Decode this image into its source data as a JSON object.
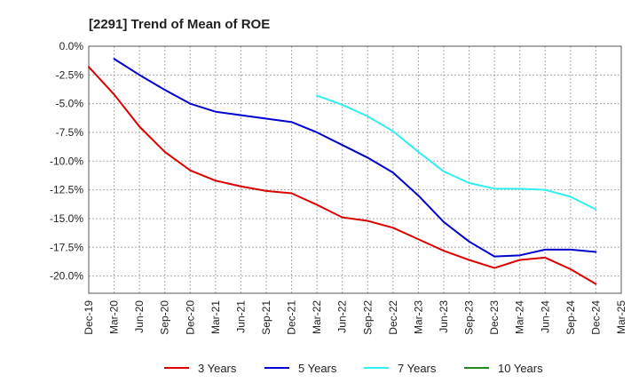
{
  "chart_data": {
    "type": "line",
    "title": "[2291]  Trend of Mean of ROE",
    "xlabel": "",
    "ylabel": "",
    "x": [
      "Dec-19",
      "Mar-20",
      "Jun-20",
      "Sep-20",
      "Dec-20",
      "Mar-21",
      "Jun-21",
      "Sep-21",
      "Dec-21",
      "Mar-22",
      "Jun-22",
      "Sep-22",
      "Dec-22",
      "Mar-23",
      "Jun-23",
      "Sep-23",
      "Dec-23",
      "Mar-24",
      "Jun-24",
      "Sep-24",
      "Dec-24",
      "Mar-25"
    ],
    "ylim": [
      -21.5,
      0
    ],
    "yticks": [
      0,
      -2.5,
      -5,
      -7.5,
      -10,
      -12.5,
      -15,
      -17.5,
      -20
    ],
    "ytick_labels": [
      "0.0%",
      "-2.5%",
      "-5.0%",
      "-7.5%",
      "-10.0%",
      "-12.5%",
      "-15.0%",
      "-17.5%",
      "-20.0%"
    ],
    "grid": true,
    "legend_position": "bottom",
    "series": [
      {
        "name": "3 Years",
        "color": "#dd0000",
        "values": [
          -1.8,
          -4.2,
          -7.0,
          -9.2,
          -10.8,
          -11.7,
          -12.2,
          -12.6,
          -12.8,
          -13.8,
          -14.9,
          -15.2,
          -15.8,
          -16.8,
          -17.8,
          -18.6,
          -19.3,
          -18.6,
          -18.4,
          -19.4,
          -20.7,
          null
        ]
      },
      {
        "name": "5 Years",
        "color": "#0000cc",
        "values": [
          null,
          -1.1,
          -2.5,
          -3.8,
          -5.0,
          -5.7,
          -6.0,
          -6.3,
          -6.6,
          -7.5,
          -8.6,
          -9.7,
          -11.0,
          -13.0,
          -15.3,
          -17.0,
          -18.3,
          -18.2,
          -17.7,
          -17.7,
          -17.9,
          null
        ]
      },
      {
        "name": "7 Years",
        "color": "#33eeee",
        "values": [
          null,
          null,
          null,
          null,
          null,
          null,
          null,
          null,
          null,
          -4.3,
          -5.1,
          -6.1,
          -7.4,
          -9.2,
          -10.9,
          -11.9,
          -12.4,
          -12.4,
          -12.5,
          -13.1,
          -14.2,
          null
        ]
      },
      {
        "name": "10 Years",
        "color": "#228822",
        "values": [
          null,
          null,
          null,
          null,
          null,
          null,
          null,
          null,
          null,
          null,
          null,
          null,
          null,
          null,
          null,
          null,
          null,
          null,
          null,
          null,
          null,
          null
        ]
      }
    ]
  }
}
